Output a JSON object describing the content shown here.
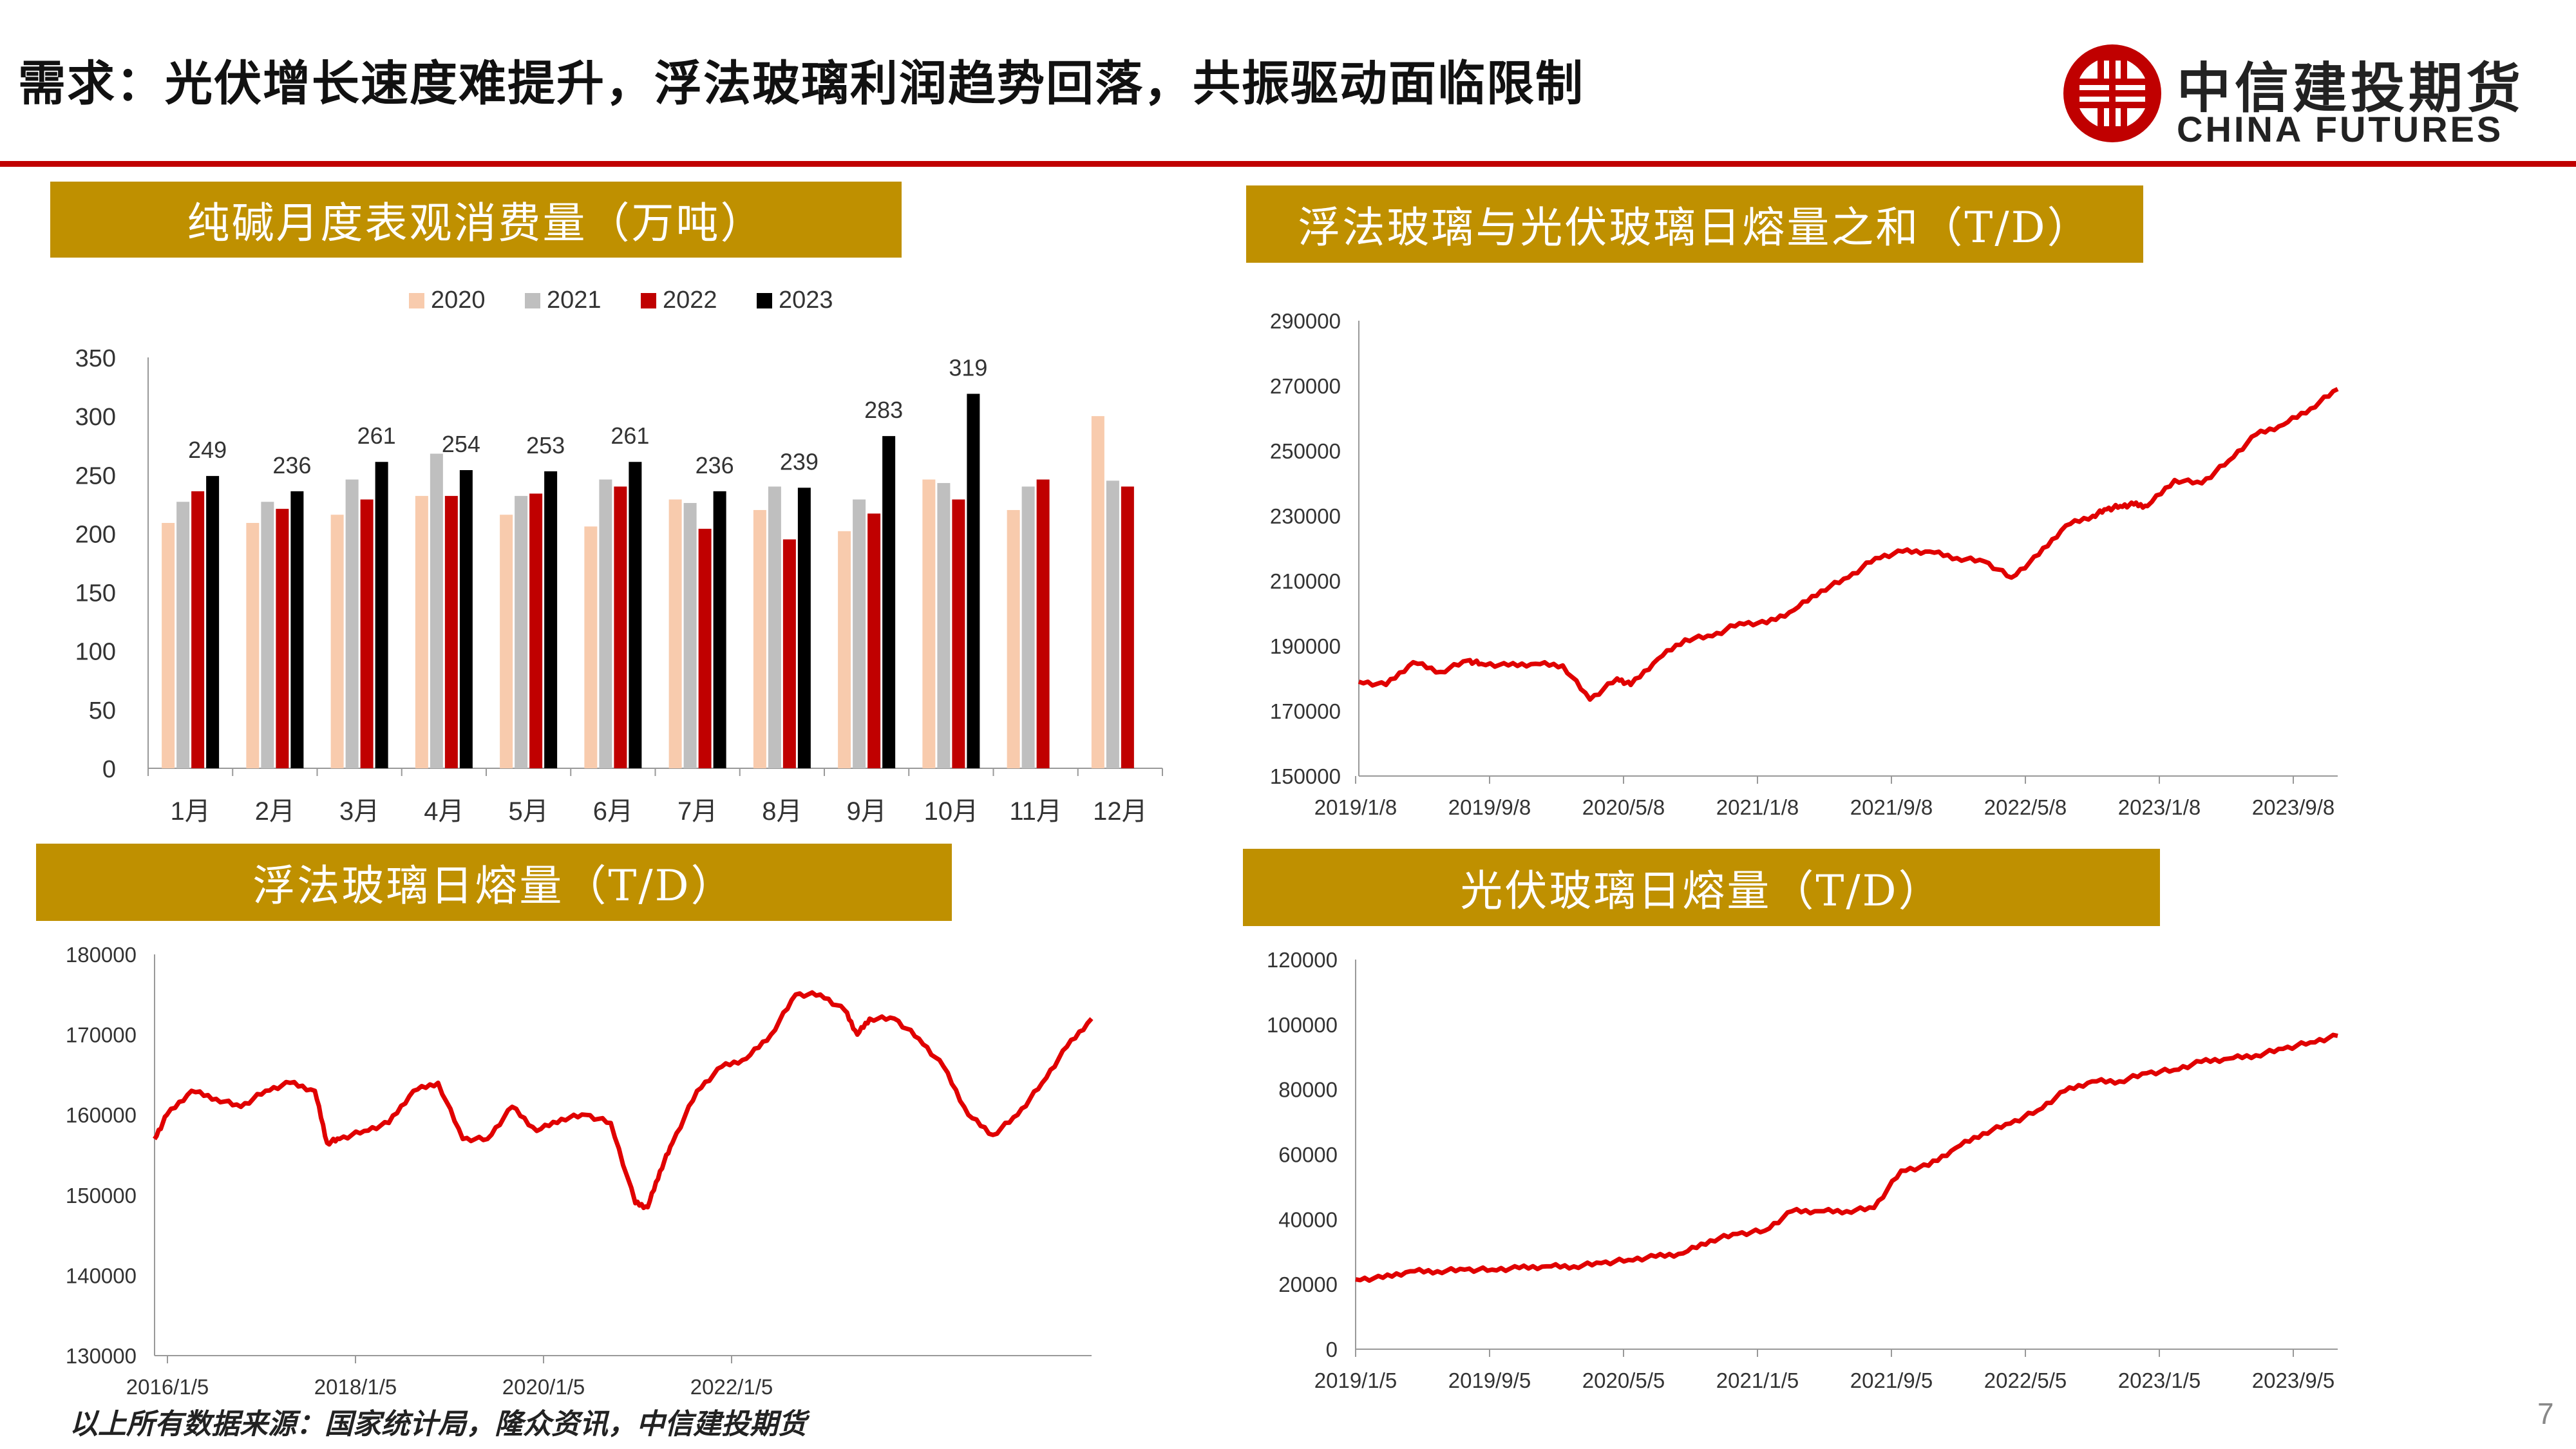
{
  "header": {
    "title": "需求：光伏增长速度难提升，浮法玻璃利润趋势回落，共振驱动面临限制",
    "logo_cn": "中信建投期货",
    "logo_en": "CHINA FUTURES"
  },
  "colors": {
    "accent_red": "#c00000",
    "panel_gold": "#bf9000",
    "bar_2020": "#f8cbad",
    "bar_2021": "#bfbfbf",
    "bar_2022": "#c00000",
    "bar_2023": "#000000",
    "line_red": "#e00000"
  },
  "panels": {
    "soda": "纯碱月度表观消费量（万吨）",
    "sum": "浮法玻璃与光伏玻璃日熔量之和（T/D）",
    "float": "浮法玻璃日熔量（T/D）",
    "pv": "光伏玻璃日熔量（T/D）"
  },
  "footer": {
    "source": "以上所有数据来源：国家统计局，隆众资讯，中信建投期货",
    "page": "7"
  },
  "chart_data": [
    {
      "id": "soda",
      "type": "bar",
      "title": "纯碱月度表观消费量（万吨）",
      "categories": [
        "1月",
        "2月",
        "3月",
        "4月",
        "5月",
        "6月",
        "7月",
        "8月",
        "9月",
        "10月",
        "11月",
        "12月"
      ],
      "series": [
        {
          "name": "2020",
          "values": [
            209,
            209,
            216,
            232,
            216,
            206,
            229,
            220,
            202,
            246,
            220,
            300
          ]
        },
        {
          "name": "2021",
          "values": [
            227,
            227,
            246,
            268,
            232,
            246,
            226,
            240,
            229,
            243,
            240,
            245
          ]
        },
        {
          "name": "2022",
          "values": [
            236,
            221,
            229,
            232,
            234,
            240,
            204,
            195,
            217,
            229,
            246,
            240
          ]
        },
        {
          "name": "2023",
          "values": [
            249,
            236,
            261,
            254,
            253,
            261,
            236,
            239,
            283,
            319,
            null,
            null
          ]
        }
      ],
      "data_labels": [
        "249",
        "236",
        "261",
        "254",
        "253",
        "261",
        "236",
        "239",
        "283",
        "319"
      ],
      "ylim": [
        0,
        350
      ],
      "yticks": [
        "350",
        "300",
        "250",
        "200",
        "150",
        "100",
        "50",
        "0"
      ],
      "legend": "top"
    },
    {
      "id": "sum",
      "type": "line",
      "title": "浮法玻璃与光伏玻璃日熔量之和（T/D）",
      "x": [
        0,
        2,
        4,
        6,
        8,
        9,
        11,
        13,
        15,
        17,
        19,
        20,
        22,
        24,
        26,
        28,
        30,
        32,
        34,
        36,
        38,
        40,
        42,
        44,
        46,
        48,
        50,
        52,
        54,
        55,
        56,
        57,
        58,
        60,
        62,
        64,
        66,
        68,
        70,
        72
      ],
      "values": [
        179000,
        178000,
        185000,
        182000,
        185500,
        184500,
        184000,
        184500,
        184000,
        173500,
        180000,
        178000,
        186000,
        192000,
        193000,
        197000,
        197000,
        201000,
        207000,
        211000,
        217000,
        219000,
        219000,
        217000,
        216000,
        211000,
        218000,
        227000,
        230000,
        232000,
        233000,
        233500,
        233000,
        241000,
        240000,
        247000,
        255000,
        258000,
        263000,
        269000
      ],
      "xticks": [
        "2019/1/8",
        "2019/9/8",
        "2020/5/8",
        "2021/1/8",
        "2021/9/8",
        "2022/5/8",
        "2023/1/8",
        "2023/9/8"
      ],
      "ylim": [
        150000,
        290000
      ],
      "yticks": [
        "290000",
        "270000",
        "250000",
        "230000",
        "210000",
        "190000",
        "170000",
        "150000"
      ]
    },
    {
      "id": "float",
      "type": "line",
      "title": "浮法玻璃日熔量（T/D）",
      "x": [
        0,
        1,
        3,
        5,
        7,
        9,
        11,
        13,
        14,
        15,
        17,
        19,
        21,
        23,
        25,
        27,
        29,
        31,
        33,
        35,
        37,
        39,
        40,
        41,
        42,
        44,
        46,
        48,
        50,
        52,
        54,
        56,
        57,
        58,
        60,
        62,
        64,
        66,
        68,
        70,
        72,
        74,
        76
      ],
      "values": [
        157000,
        160000,
        163000,
        162000,
        161000,
        163000,
        164000,
        163000,
        156500,
        157000,
        158000,
        159000,
        163000,
        164000,
        157000,
        157000,
        161000,
        158000,
        159500,
        160000,
        159000,
        149000,
        148500,
        153000,
        156500,
        163000,
        166000,
        167000,
        170000,
        175000,
        175000,
        173000,
        170000,
        172000,
        172000,
        169500,
        166000,
        160000,
        157500,
        160000,
        164000,
        168500,
        172000
      ],
      "xticks": [
        "2016/1/5",
        "2018/1/5",
        "2020/1/5",
        "2022/1/5"
      ],
      "ylim": [
        130000,
        180000
      ],
      "yticks": [
        "180000",
        "170000",
        "160000",
        "150000",
        "140000",
        "130000"
      ]
    },
    {
      "id": "pv",
      "type": "line",
      "title": "光伏玻璃日熔量（T/D）",
      "x": [
        0,
        2,
        4,
        6,
        8,
        10,
        12,
        14,
        16,
        18,
        20,
        22,
        24,
        26,
        28,
        30,
        32,
        34,
        36,
        38,
        40,
        42,
        44,
        46,
        48,
        50,
        52,
        54,
        56,
        58,
        60,
        62,
        64,
        66,
        68,
        70,
        72
      ],
      "values": [
        21500,
        22000,
        24000,
        24000,
        24500,
        24500,
        25000,
        25500,
        25500,
        26500,
        27500,
        28500,
        29500,
        33500,
        35500,
        36500,
        42500,
        42500,
        42500,
        43500,
        55000,
        56500,
        62000,
        66500,
        69500,
        73500,
        79500,
        82500,
        82500,
        85000,
        86000,
        88500,
        89500,
        90500,
        92500,
        94500,
        96500
      ],
      "xticks": [
        "2019/1/5",
        "2019/9/5",
        "2020/5/5",
        "2021/1/5",
        "2021/9/5",
        "2022/5/5",
        "2023/1/5",
        "2023/9/5"
      ],
      "ylim": [
        0,
        120000
      ],
      "yticks": [
        "120000",
        "100000",
        "80000",
        "60000",
        "40000",
        "20000",
        "0"
      ]
    }
  ]
}
